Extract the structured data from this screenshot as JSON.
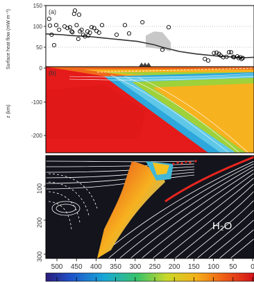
{
  "panel_a": {
    "label": "(a)",
    "ylabel": "Surface heat flow (mW m⁻²)",
    "yticks": [
      "150",
      "100",
      "50",
      "0"
    ]
  },
  "panel_b": {
    "label": "(b)",
    "ylabel": "z (km)",
    "yticks": [
      "-100",
      "-200"
    ]
  },
  "panel_c": {
    "yticks": [
      "100",
      "200",
      "300"
    ],
    "annotation": "H₂O"
  },
  "x_axis": {
    "ticks": [
      "500",
      "450",
      "400",
      "350",
      "300",
      "250",
      "200",
      "150",
      "100",
      "50",
      "0"
    ]
  },
  "chart_data": {
    "type": "scatter",
    "panel": "(a)",
    "ylabel": "Surface heat flow (mW m⁻²)",
    "ylim": [
      0,
      150
    ],
    "xlim": [
      500,
      0
    ],
    "observations": {
      "x": [
        492,
        490,
        486,
        480,
        475,
        468,
        455,
        448,
        442,
        438,
        436,
        432,
        430,
        426,
        422,
        420,
        418,
        414,
        410,
        406,
        400,
        398,
        394,
        390,
        384,
        378,
        372,
        365,
        330,
        310,
        300,
        268,
        220,
        205,
        118,
        110,
        96,
        90,
        84,
        80,
        74,
        66,
        60,
        55,
        50,
        48,
        40,
        37,
        33,
        30,
        27
      ],
      "y": [
        118,
        102,
        80,
        55,
        103,
        92,
        100,
        96,
        98,
        88,
        86,
        130,
        138,
        103,
        70,
        128,
        88,
        92,
        80,
        76,
        88,
        78,
        85,
        98,
        96,
        89,
        85,
        103,
        80,
        103,
        83,
        110,
        44,
        98,
        22,
        18,
        36,
        37,
        34,
        30,
        26,
        27,
        38,
        38,
        27,
        26,
        28,
        24,
        26,
        22,
        24
      ]
    },
    "model": {
      "x": [
        500,
        480,
        460,
        440,
        420,
        400,
        380,
        360,
        340,
        320,
        300,
        280,
        260,
        240,
        220,
        200,
        180,
        160,
        140,
        120,
        100,
        80,
        60,
        40,
        20,
        0
      ],
      "y": [
        82,
        81,
        80,
        78,
        77,
        76,
        74,
        72,
        70,
        68,
        66,
        64,
        60,
        56,
        50,
        45,
        40,
        37,
        34,
        32,
        30,
        28,
        27,
        26,
        25,
        26
      ]
    },
    "model_band": {
      "x": [
        260,
        240,
        220,
        200
      ],
      "upper": [
        78,
        88,
        86,
        62
      ],
      "lower": [
        50,
        48,
        45,
        40
      ]
    }
  },
  "colors": {
    "hot": "#e51a1a",
    "mantle_dark": "#14141d",
    "contour_white": "#ffffff",
    "slab_red": "#e8261e"
  }
}
